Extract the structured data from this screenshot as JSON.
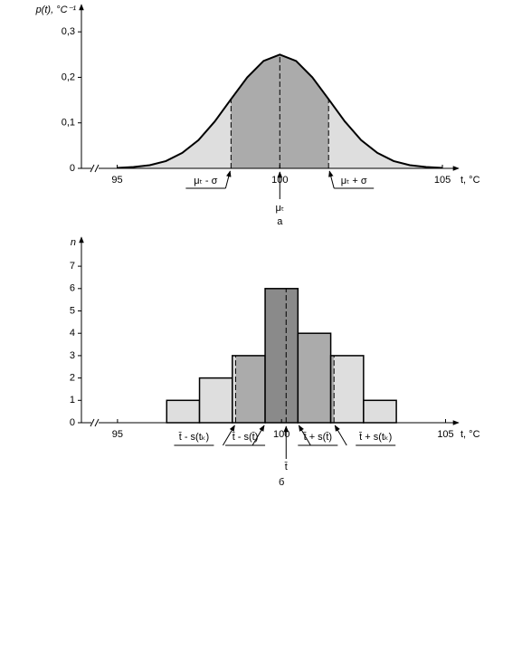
{
  "chart_data": [
    {
      "type": "area",
      "ylabel": "p(t), °C⁻¹",
      "xlabel": "t, °C",
      "caption": "а",
      "x": [
        95,
        95.5,
        96,
        96.5,
        97,
        97.5,
        98,
        98.5,
        99,
        99.5,
        100,
        100.5,
        101,
        101.5,
        102,
        102.5,
        103,
        103.5,
        104,
        104.5,
        105
      ],
      "values": [
        0.001,
        0.003,
        0.007,
        0.016,
        0.034,
        0.062,
        0.103,
        0.152,
        0.2,
        0.236,
        0.25,
        0.236,
        0.2,
        0.152,
        0.103,
        0.062,
        0.034,
        0.016,
        0.007,
        0.003,
        0.001
      ],
      "xlim": [
        93.9,
        105.5
      ],
      "ylim": [
        0,
        0.36
      ],
      "xticks": [
        95,
        100,
        105
      ],
      "yticks": [
        0,
        {
          "value": 0.1,
          "label": "0,1"
        },
        {
          "value": 0.2,
          "label": "0,2"
        },
        {
          "value": 0.3,
          "label": "0,3"
        }
      ],
      "color": "#dedede",
      "band_color": "#ababab",
      "markers": [
        {
          "label": "μₜ - σ",
          "value": 98.5
        },
        {
          "label": "μₜ",
          "value": 100
        },
        {
          "label": "μₜ + σ",
          "value": 101.5
        }
      ]
    },
    {
      "type": "histogram",
      "ylabel": "n",
      "xlabel": "t, °C",
      "caption": "б",
      "bins": [
        96.5,
        97.5,
        98.5,
        99.5,
        100.5,
        101.5,
        102.5,
        103.5
      ],
      "values": [
        1,
        2,
        3,
        6,
        4,
        3,
        1
      ],
      "xlim": [
        93.9,
        105.4
      ],
      "ylim": [
        0,
        8.3
      ],
      "xticks": [
        95,
        100,
        105
      ],
      "yticks": [
        0,
        1,
        2,
        3,
        4,
        5,
        6,
        7
      ],
      "color": "#dedede",
      "band_color": "#ababab",
      "center_color": "#8a8a8a",
      "markers": [
        {
          "label": "t̄ - s(tₖ)",
          "value": 98.6
        },
        {
          "label": "t̄ - s(t̄)",
          "value": 99.5
        },
        {
          "label": "t̄",
          "value": 100.14
        },
        {
          "label": "t̄ + s(t̄)",
          "value": 100.5
        },
        {
          "label": "t̄ + s(tₖ)",
          "value": 101.6
        }
      ]
    }
  ]
}
